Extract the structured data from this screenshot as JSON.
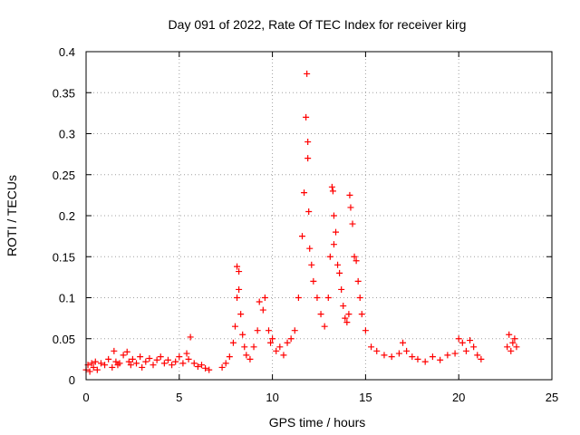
{
  "chart_data": {
    "type": "scatter",
    "title": "Day 091 of 2022, Rate Of TEC Index for receiver kirg",
    "xlabel": "GPS time / hours",
    "ylabel": "ROTI / TECUs",
    "xlim": [
      0,
      25
    ],
    "ylim": [
      0,
      0.4
    ],
    "xticks": [
      "0",
      "5",
      "10",
      "15",
      "20",
      "25"
    ],
    "yticks": [
      "0",
      "0.05",
      "0.1",
      "0.15",
      "0.2",
      "0.25",
      "0.3",
      "0.35",
      "0.4"
    ],
    "xtick_values": [
      0,
      5,
      10,
      15,
      20,
      25
    ],
    "ytick_values": [
      0,
      0.05,
      0.1,
      0.15,
      0.2,
      0.25,
      0.3,
      0.35,
      0.4
    ],
    "grid": true,
    "marker": "+",
    "color": "#ff0000",
    "series": [
      {
        "x": [
          0.0,
          0.1,
          0.2,
          0.3,
          0.4,
          0.5,
          0.6,
          0.8,
          1.0,
          1.2,
          1.4,
          1.5,
          1.6,
          1.7,
          1.8,
          2.0,
          2.2,
          2.3,
          2.4,
          2.5,
          2.7,
          2.9,
          3.0,
          3.2,
          3.4,
          3.6,
          3.8,
          4.0,
          4.2,
          4.4,
          4.6,
          4.8,
          5.0,
          5.2,
          5.4,
          5.5,
          5.6,
          5.8,
          6.0,
          6.2,
          6.4,
          6.6,
          7.3,
          7.5,
          7.7,
          7.9,
          8.0,
          8.1,
          8.1,
          8.2,
          8.2,
          8.3,
          8.4,
          8.5,
          8.6,
          8.8,
          9.0,
          9.2,
          9.3,
          9.5,
          9.6,
          9.8,
          9.9,
          10.0,
          10.2,
          10.4,
          10.6,
          10.8,
          11.0,
          11.2,
          11.4,
          11.6,
          11.7,
          11.8,
          11.85,
          11.9,
          11.9,
          11.95,
          12.0,
          12.1,
          12.2,
          12.4,
          12.6,
          12.8,
          13.0,
          13.1,
          13.2,
          13.25,
          13.3,
          13.3,
          13.4,
          13.5,
          13.6,
          13.7,
          13.8,
          13.9,
          14.0,
          14.1,
          14.15,
          14.2,
          14.3,
          14.4,
          14.5,
          14.6,
          14.7,
          14.8,
          15.0,
          15.3,
          15.6,
          16.0,
          16.4,
          16.8,
          17.0,
          17.2,
          17.5,
          17.8,
          18.2,
          18.6,
          19.0,
          19.4,
          19.8,
          20.0,
          20.2,
          20.4,
          20.6,
          20.8,
          21.0,
          21.2,
          22.6,
          22.7,
          22.8,
          22.9,
          23.0,
          23.1
        ],
        "y": [
          0.012,
          0.018,
          0.01,
          0.02,
          0.015,
          0.022,
          0.012,
          0.02,
          0.018,
          0.025,
          0.015,
          0.035,
          0.022,
          0.018,
          0.02,
          0.03,
          0.034,
          0.022,
          0.018,
          0.025,
          0.02,
          0.028,
          0.015,
          0.022,
          0.026,
          0.018,
          0.024,
          0.028,
          0.02,
          0.024,
          0.018,
          0.022,
          0.028,
          0.02,
          0.032,
          0.025,
          0.052,
          0.02,
          0.016,
          0.018,
          0.014,
          0.012,
          0.015,
          0.02,
          0.028,
          0.045,
          0.065,
          0.1,
          0.138,
          0.132,
          0.11,
          0.08,
          0.055,
          0.04,
          0.03,
          0.025,
          0.04,
          0.06,
          0.095,
          0.085,
          0.1,
          0.06,
          0.045,
          0.05,
          0.035,
          0.04,
          0.03,
          0.045,
          0.05,
          0.06,
          0.1,
          0.175,
          0.228,
          0.32,
          0.373,
          0.29,
          0.27,
          0.205,
          0.16,
          0.14,
          0.12,
          0.1,
          0.08,
          0.065,
          0.1,
          0.15,
          0.235,
          0.23,
          0.2,
          0.165,
          0.18,
          0.14,
          0.13,
          0.11,
          0.09,
          0.075,
          0.07,
          0.08,
          0.225,
          0.21,
          0.19,
          0.15,
          0.145,
          0.12,
          0.1,
          0.08,
          0.06,
          0.04,
          0.035,
          0.03,
          0.028,
          0.032,
          0.045,
          0.035,
          0.028,
          0.025,
          0.022,
          0.028,
          0.024,
          0.03,
          0.032,
          0.05,
          0.045,
          0.035,
          0.048,
          0.04,
          0.03,
          0.025,
          0.04,
          0.055,
          0.035,
          0.045,
          0.05,
          0.04
        ]
      }
    ]
  }
}
